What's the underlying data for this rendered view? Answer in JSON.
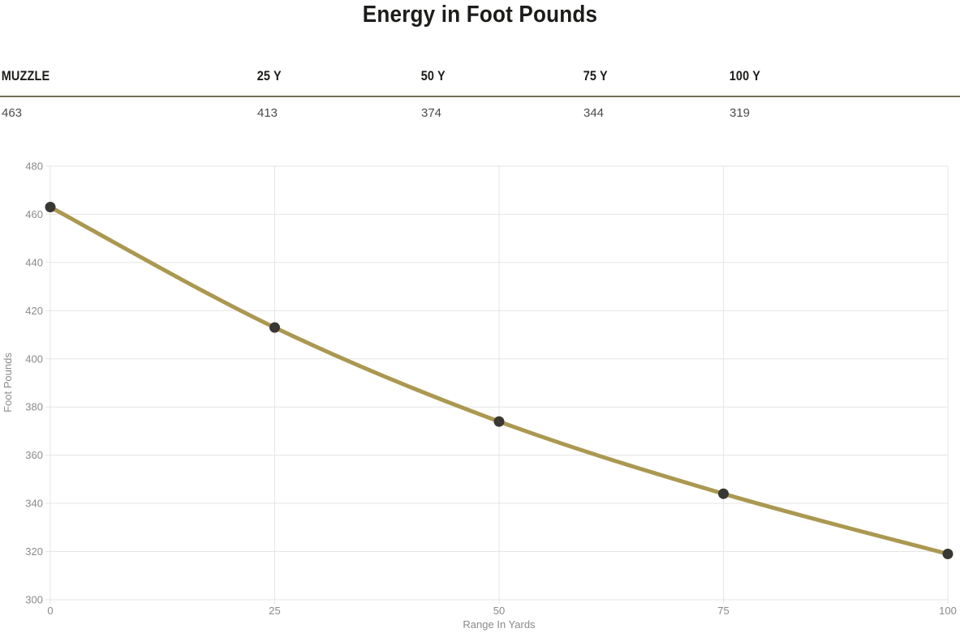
{
  "title": "Energy in Foot Pounds",
  "stats": {
    "headers": [
      "MUZZLE",
      "25 Y",
      "50 Y",
      "75 Y",
      "100 Y"
    ],
    "values": [
      "463",
      "413",
      "374",
      "344",
      "319"
    ]
  },
  "chart_data": {
    "type": "line",
    "x": [
      0,
      25,
      50,
      75,
      100
    ],
    "series": [
      {
        "name": "Energy in Foot Pounds",
        "values": [
          463,
          413,
          374,
          344,
          319
        ]
      }
    ],
    "title": "Energy in Foot Pounds",
    "xlabel": "Range In Yards",
    "ylabel": "Foot Pounds",
    "xlim": [
      0,
      100
    ],
    "ylim": [
      300,
      480
    ],
    "xticks": [
      0,
      25,
      50,
      75,
      100
    ],
    "yticks": [
      300,
      320,
      340,
      360,
      380,
      400,
      420,
      440,
      460,
      480
    ],
    "grid": true,
    "legend": "none",
    "line_color": "#ab9851",
    "point_color": "#3a3833",
    "grid_color": "#e5e5e5",
    "tick_label_color": "#8a8a8a",
    "axis_title_color": "#8a8a8a"
  },
  "colors": {
    "header_rule": "#746c5c",
    "heading_text": "#1c1c1a",
    "value_text": "#4b4b4b"
  }
}
